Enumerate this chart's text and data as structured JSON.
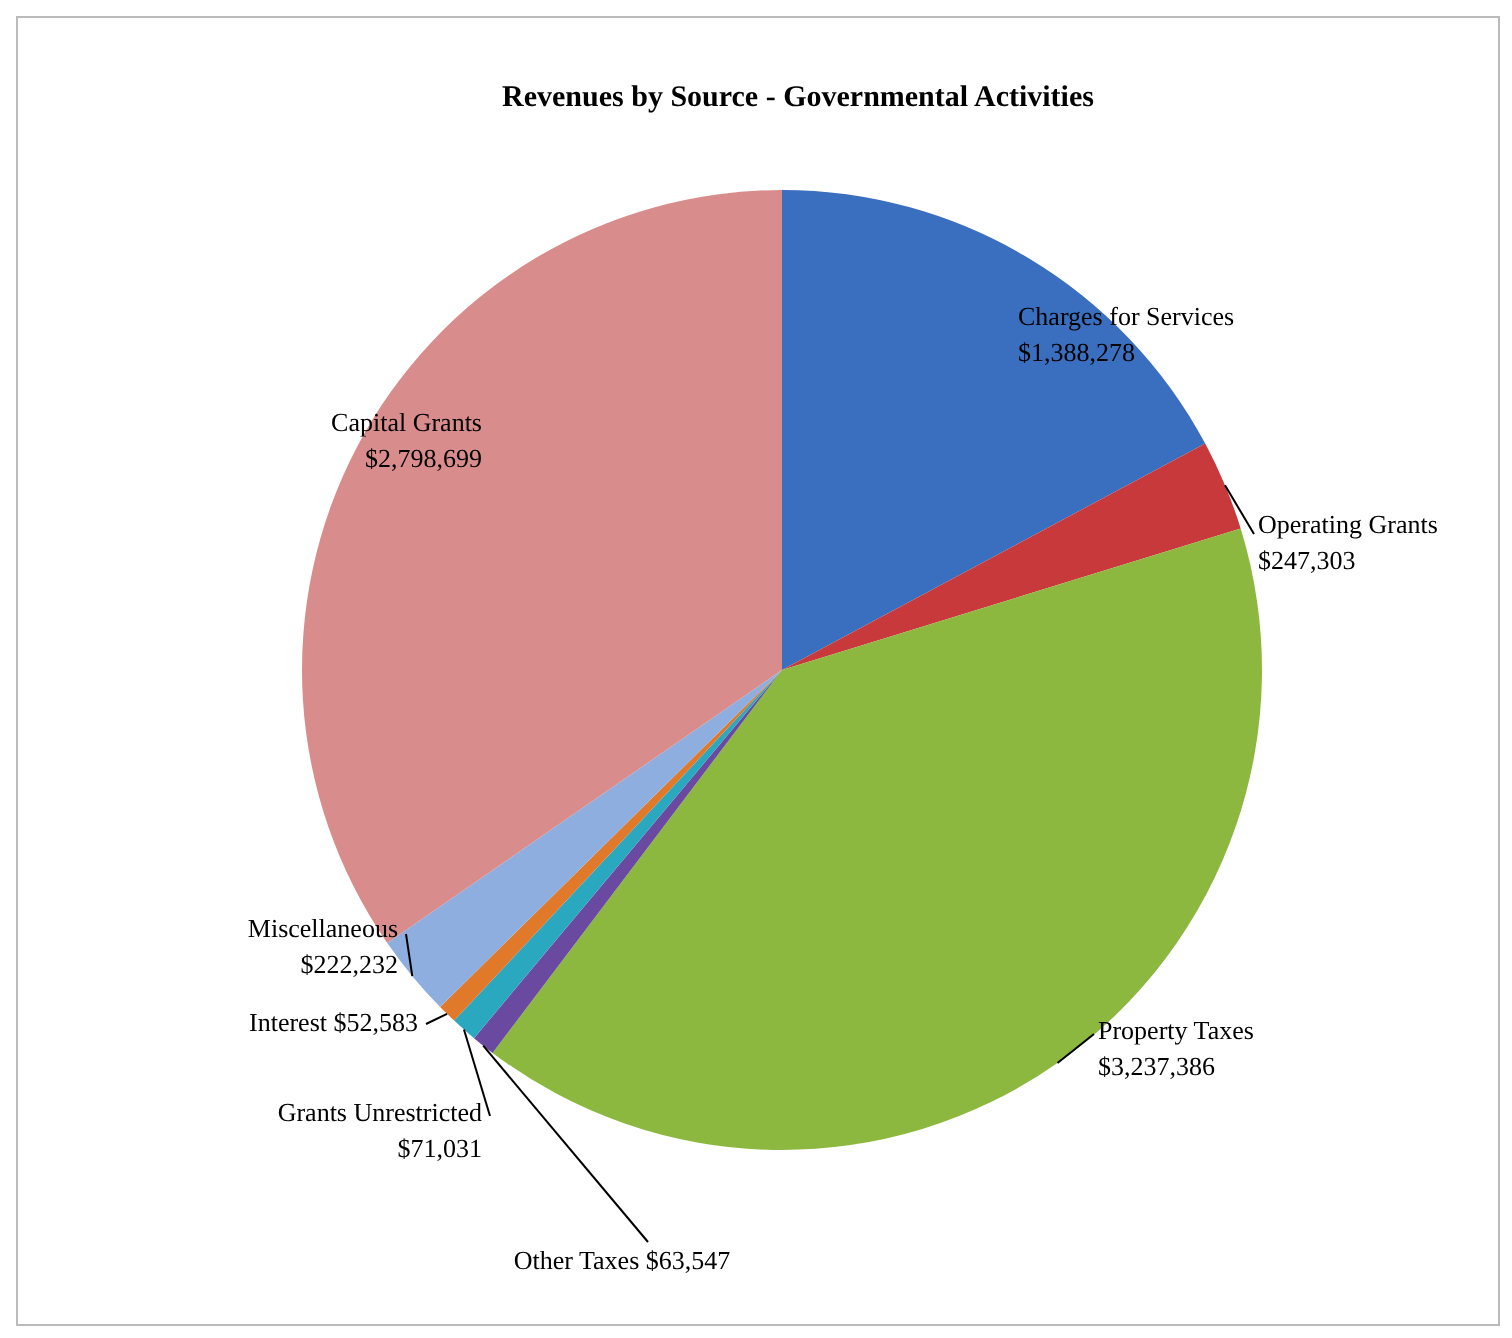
{
  "chart_data": {
    "type": "pie",
    "title": "Revenues by Source - Governmental Activities",
    "categories": [
      "Charges for Services",
      "Operating Grants",
      "Property Taxes",
      "Other Taxes",
      "Grants Unrestricted",
      "Interest",
      "Miscellaneous",
      "Capital Grants"
    ],
    "values": [
      1388278,
      247303,
      3237386,
      63547,
      71031,
      52583,
      222232,
      2798699
    ],
    "value_labels": [
      "$1,388,278",
      "$247,303",
      "$3,237,386",
      "$63,547",
      "$71,031",
      "$52,583",
      "$222,232",
      "$2,798,699"
    ],
    "colors": [
      "#3a6fbf",
      "#c8393b",
      "#8cb83f",
      "#6a4aa0",
      "#2aa8c0",
      "#e07a2a",
      "#8eaee0",
      "#d98c8c"
    ],
    "legend": false
  }
}
